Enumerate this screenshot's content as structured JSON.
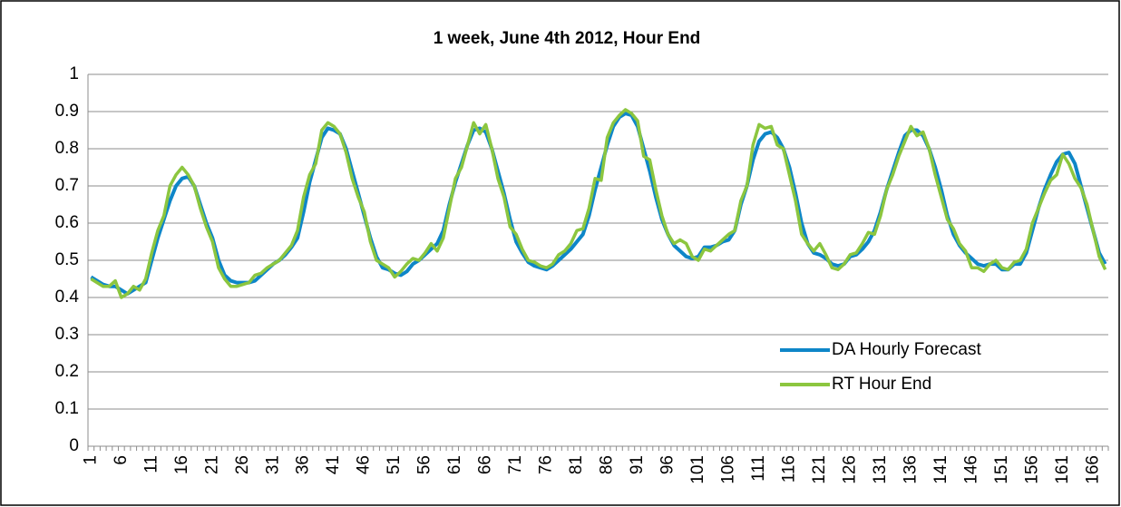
{
  "chart_data": {
    "type": "line",
    "title": "1 week, June 4th 2012, Hour End",
    "categories": [
      "1",
      null,
      null,
      null,
      null,
      "6",
      null,
      null,
      null,
      null,
      "11",
      null,
      null,
      null,
      null,
      "16",
      null,
      null,
      null,
      null,
      "21",
      null,
      null,
      null,
      null,
      "26",
      null,
      null,
      null,
      null,
      "31",
      null,
      null,
      null,
      null,
      "36",
      null,
      null,
      null,
      null,
      "41",
      null,
      null,
      null,
      null,
      "46",
      null,
      null,
      null,
      null,
      "51",
      null,
      null,
      null,
      null,
      "56",
      null,
      null,
      null,
      null,
      "61",
      null,
      null,
      null,
      null,
      "66",
      null,
      null,
      null,
      null,
      "71",
      null,
      null,
      null,
      null,
      "76",
      null,
      null,
      null,
      null,
      "81",
      null,
      null,
      null,
      null,
      "86",
      null,
      null,
      null,
      null,
      "91",
      null,
      null,
      null,
      null,
      "96",
      null,
      null,
      null,
      null,
      "101",
      null,
      null,
      null,
      null,
      "106",
      null,
      null,
      null,
      null,
      "111",
      null,
      null,
      null,
      null,
      "116",
      null,
      null,
      null,
      null,
      "121",
      null,
      null,
      null,
      null,
      "126",
      null,
      null,
      null,
      null,
      "131",
      null,
      null,
      null,
      null,
      "136",
      null,
      null,
      null,
      null,
      "141",
      null,
      null,
      null,
      null,
      "146",
      null,
      null,
      null,
      null,
      "151",
      null,
      null,
      null,
      null,
      "156",
      null,
      null,
      null,
      null,
      "161",
      null,
      null,
      null,
      null,
      "166",
      null,
      null
    ],
    "series": [
      {
        "name": "DA Hourly Forecast",
        "color": "#0e86c8",
        "values": [
          0.455,
          0.445,
          0.435,
          0.43,
          0.43,
          0.42,
          0.41,
          0.42,
          0.43,
          0.44,
          0.5,
          0.56,
          0.61,
          0.66,
          0.7,
          0.72,
          0.725,
          0.7,
          0.65,
          0.6,
          0.56,
          0.5,
          0.46,
          0.445,
          0.44,
          0.44,
          0.44,
          0.445,
          0.46,
          0.475,
          0.49,
          0.5,
          0.515,
          0.535,
          0.56,
          0.63,
          0.71,
          0.77,
          0.83,
          0.855,
          0.85,
          0.84,
          0.8,
          0.74,
          0.68,
          0.62,
          0.56,
          0.51,
          0.48,
          0.475,
          0.465,
          0.46,
          0.47,
          0.49,
          0.5,
          0.515,
          0.53,
          0.545,
          0.58,
          0.65,
          0.71,
          0.76,
          0.81,
          0.85,
          0.855,
          0.845,
          0.8,
          0.74,
          0.68,
          0.61,
          0.55,
          0.52,
          0.495,
          0.485,
          0.48,
          0.475,
          0.485,
          0.5,
          0.515,
          0.53,
          0.55,
          0.57,
          0.62,
          0.69,
          0.75,
          0.81,
          0.86,
          0.885,
          0.895,
          0.89,
          0.86,
          0.8,
          0.74,
          0.67,
          0.61,
          0.57,
          0.54,
          0.525,
          0.51,
          0.505,
          0.51,
          0.535,
          0.535,
          0.54,
          0.55,
          0.555,
          0.58,
          0.65,
          0.7,
          0.77,
          0.82,
          0.84,
          0.845,
          0.83,
          0.8,
          0.75,
          0.68,
          0.6,
          0.545,
          0.52,
          0.515,
          0.505,
          0.49,
          0.485,
          0.49,
          0.51,
          0.515,
          0.53,
          0.55,
          0.58,
          0.63,
          0.69,
          0.74,
          0.79,
          0.835,
          0.85,
          0.85,
          0.835,
          0.8,
          0.75,
          0.69,
          0.62,
          0.57,
          0.54,
          0.52,
          0.505,
          0.49,
          0.485,
          0.49,
          0.49,
          0.475,
          0.475,
          0.49,
          0.49,
          0.52,
          0.58,
          0.64,
          0.69,
          0.73,
          0.765,
          0.785,
          0.79,
          0.76,
          0.7,
          0.64,
          0.58,
          0.52,
          0.49
        ]
      },
      {
        "name": "RT Hour End",
        "color": "#8cc63f",
        "values": [
          0.45,
          0.44,
          0.43,
          0.43,
          0.445,
          0.4,
          0.41,
          0.43,
          0.42,
          0.45,
          0.52,
          0.58,
          0.62,
          0.7,
          0.73,
          0.75,
          0.73,
          0.7,
          0.64,
          0.59,
          0.55,
          0.48,
          0.45,
          0.43,
          0.43,
          0.435,
          0.44,
          0.46,
          0.465,
          0.48,
          0.49,
          0.5,
          0.52,
          0.54,
          0.58,
          0.67,
          0.73,
          0.76,
          0.85,
          0.87,
          0.86,
          0.84,
          0.79,
          0.72,
          0.67,
          0.63,
          0.55,
          0.5,
          0.49,
          0.48,
          0.455,
          0.47,
          0.49,
          0.505,
          0.5,
          0.52,
          0.545,
          0.525,
          0.56,
          0.64,
          0.72,
          0.75,
          0.81,
          0.87,
          0.84,
          0.865,
          0.8,
          0.72,
          0.67,
          0.59,
          0.57,
          0.53,
          0.5,
          0.495,
          0.485,
          0.48,
          0.49,
          0.515,
          0.525,
          0.545,
          0.58,
          0.585,
          0.64,
          0.72,
          0.715,
          0.83,
          0.87,
          0.89,
          0.905,
          0.895,
          0.875,
          0.78,
          0.77,
          0.69,
          0.62,
          0.57,
          0.545,
          0.555,
          0.545,
          0.51,
          0.5,
          0.53,
          0.525,
          0.54,
          0.555,
          0.57,
          0.58,
          0.66,
          0.7,
          0.81,
          0.865,
          0.855,
          0.86,
          0.81,
          0.8,
          0.73,
          0.66,
          0.57,
          0.545,
          0.525,
          0.545,
          0.515,
          0.48,
          0.475,
          0.49,
          0.515,
          0.52,
          0.545,
          0.575,
          0.57,
          0.62,
          0.69,
          0.73,
          0.78,
          0.82,
          0.86,
          0.835,
          0.845,
          0.8,
          0.73,
          0.67,
          0.61,
          0.585,
          0.545,
          0.525,
          0.48,
          0.48,
          0.47,
          0.49,
          0.5,
          0.48,
          0.475,
          0.495,
          0.5,
          0.53,
          0.6,
          0.64,
          0.68,
          0.715,
          0.73,
          0.785,
          0.76,
          0.72,
          0.695,
          0.65,
          0.58,
          0.51,
          0.475
        ]
      }
    ],
    "ylim": [
      0,
      1
    ],
    "yticks": [
      0,
      0.1,
      0.2,
      0.3,
      0.4,
      0.5,
      0.6,
      0.7,
      0.8,
      0.9,
      1
    ],
    "grid": true,
    "legend": "lower right"
  }
}
